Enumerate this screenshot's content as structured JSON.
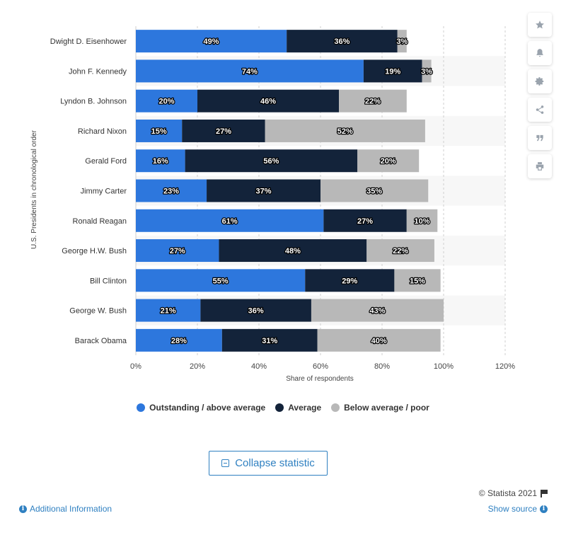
{
  "chart_data": {
    "type": "bar",
    "orientation": "horizontal",
    "stacked": true,
    "categories": [
      "Dwight D. Eisenhower",
      "John F. Kennedy",
      "Lyndon B. Johnson",
      "Richard Nixon",
      "Gerald Ford",
      "Jimmy Carter",
      "Ronald Reagan",
      "George H.W. Bush",
      "Bill Clinton",
      "George W. Bush",
      "Barack Obama"
    ],
    "series": [
      {
        "name": "Outstanding / above average",
        "color": "#2d77dd",
        "values": [
          49,
          74,
          20,
          15,
          16,
          23,
          61,
          27,
          55,
          21,
          28
        ]
      },
      {
        "name": "Average",
        "color": "#13233a",
        "values": [
          36,
          19,
          46,
          27,
          56,
          37,
          27,
          48,
          29,
          36,
          31
        ]
      },
      {
        "name": "Below average / poor",
        "color": "#b8b8b8",
        "values": [
          3,
          3,
          22,
          52,
          20,
          35,
          10,
          22,
          15,
          43,
          40
        ]
      }
    ],
    "value_labels": [
      [
        "49%",
        "74%",
        "20%",
        "15%",
        "16%",
        "23%",
        "61%",
        "27%",
        "55%",
        "21%",
        "28%"
      ],
      [
        "36%",
        "19%",
        "46%",
        "27%",
        "56%",
        "37%",
        "27%",
        "48%",
        "29%",
        "36%",
        "31%"
      ],
      [
        "3%",
        "3%",
        "22%",
        "52%",
        "20%",
        "35%",
        "10%",
        "22%",
        "15%",
        "43%",
        "40%"
      ]
    ],
    "xlabel": "Share of respondents",
    "ylabel": "U.S. Presidents in chronological order",
    "xlim": [
      0,
      120
    ],
    "xticks": [
      0,
      20,
      40,
      60,
      80,
      100,
      120
    ],
    "xtick_labels": [
      "0%",
      "20%",
      "40%",
      "60%",
      "80%",
      "100%",
      "120%"
    ],
    "grid": true,
    "legend_position": "bottom-center"
  },
  "ui": {
    "collapse_label": "Collapse statistic",
    "copyright": "© Statista 2021",
    "additional_info": "Additional Information",
    "show_source": "Show source",
    "tool_icons": [
      "star-icon",
      "bell-icon",
      "gear-icon",
      "share-icon",
      "quote-icon",
      "print-icon"
    ]
  }
}
